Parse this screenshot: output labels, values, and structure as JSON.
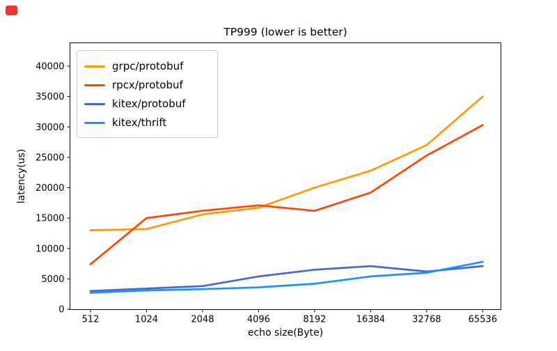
{
  "window": {
    "badge_color": "#E13B30"
  },
  "chart_data": {
    "type": "line",
    "title": "TP999 (lower is better)",
    "xlabel": "echo size(Byte)",
    "ylabel": "latency(us)",
    "categories": [
      "512",
      "1024",
      "2048",
      "4096",
      "8192",
      "16384",
      "32768",
      "65536"
    ],
    "y_ticks": [
      0,
      5000,
      10000,
      15000,
      20000,
      25000,
      30000,
      35000,
      40000
    ],
    "ylim": [
      0,
      43800
    ],
    "grid": false,
    "legend_position": "upper left",
    "series": [
      {
        "name": "grpc/protobuf",
        "color": "#FF9808",
        "values": [
          13000,
          13200,
          15600,
          16700,
          20000,
          22800,
          27000,
          35000
        ]
      },
      {
        "name": "rpcx/protobuf",
        "color": "#FF4500",
        "values": [
          7400,
          15000,
          16200,
          17100,
          16200,
          19200,
          25300,
          30300
        ]
      },
      {
        "name": "kitex/protobuf",
        "color": "#4566D6",
        "values": [
          3000,
          3400,
          3800,
          5400,
          6500,
          7100,
          6200,
          7100
        ]
      },
      {
        "name": "kitex/thrift",
        "color": "#1E90FF",
        "values": [
          2700,
          3100,
          3300,
          3600,
          4200,
          5400,
          6000,
          7800
        ]
      }
    ]
  }
}
